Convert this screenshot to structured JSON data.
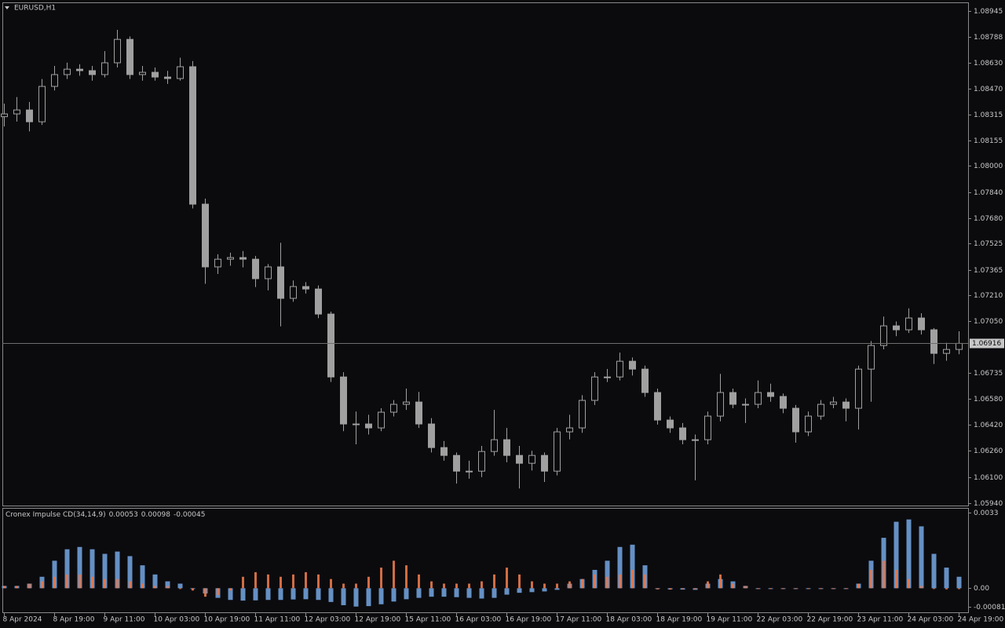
{
  "chart_data": [
    {
      "type": "candlestick",
      "title": "EURUSD,H1",
      "color": "#a0a0a0",
      "current_price": 1.06916,
      "categories": [
        "8 Apr 2024",
        null,
        null,
        null,
        "8 Apr 19:00",
        null,
        null,
        null,
        "9 Apr 11:00",
        null,
        null,
        null,
        "10 Apr 03:00",
        null,
        null,
        null,
        "10 Apr 19:00",
        null,
        null,
        null,
        "11 Apr 11:00",
        null,
        null,
        null,
        "12 Apr 03:00",
        null,
        null,
        null,
        "12 Apr 19:00",
        null,
        null,
        null,
        "15 Apr 11:00",
        null,
        null,
        null,
        "16 Apr 03:00",
        null,
        null,
        null,
        "16 Apr 19:00",
        null,
        null,
        null,
        "17 Apr 11:00",
        null,
        null,
        null,
        "18 Apr 03:00",
        null,
        null,
        null,
        "18 Apr 19:00",
        null,
        null,
        null,
        "19 Apr 11:00",
        null,
        null,
        null,
        "22 Apr 03:00",
        null,
        null,
        null,
        "22 Apr 19:00",
        null,
        null,
        null,
        "23 Apr 11:00",
        null,
        null,
        null,
        "24 Apr 03:00",
        null,
        null,
        null,
        "24 Apr 19:00"
      ],
      "candles": [
        [
          1.083,
          1.0838,
          1.0824,
          1.08317
        ],
        [
          1.08317,
          1.0842,
          1.0827,
          1.08341
        ],
        [
          1.08341,
          1.0839,
          1.0821,
          1.08269
        ],
        [
          1.08269,
          1.0853,
          1.0825,
          1.08485
        ],
        [
          1.08485,
          1.0861,
          1.0846,
          1.08557
        ],
        [
          1.08557,
          1.0863,
          1.0853,
          1.0859
        ],
        [
          1.0859,
          1.0862,
          1.0855,
          1.08581
        ],
        [
          1.08581,
          1.0861,
          1.0852,
          1.08557
        ],
        [
          1.08557,
          1.087,
          1.0854,
          1.08629
        ],
        [
          1.08629,
          1.0883,
          1.086,
          1.08772
        ],
        [
          1.08772,
          1.0879,
          1.0853,
          1.08557
        ],
        [
          1.08557,
          1.0861,
          1.0852,
          1.08571
        ],
        [
          1.08571,
          1.086,
          1.0852,
          1.08542
        ],
        [
          1.08542,
          1.0858,
          1.085,
          1.08533
        ],
        [
          1.08533,
          1.0866,
          1.0852,
          1.08605
        ],
        [
          1.08605,
          1.0864,
          1.0774,
          1.07766
        ],
        [
          1.07766,
          1.078,
          1.0728,
          1.07383
        ],
        [
          1.07383,
          1.0746,
          1.0734,
          1.0743
        ],
        [
          1.0743,
          1.0747,
          1.0739,
          1.0744
        ],
        [
          1.0744,
          1.0748,
          1.0738,
          1.0743
        ],
        [
          1.0743,
          1.0745,
          1.0726,
          1.07311
        ],
        [
          1.07311,
          1.074,
          1.0724,
          1.07383
        ],
        [
          1.07383,
          1.0753,
          1.0702,
          1.07191
        ],
        [
          1.07191,
          1.073,
          1.0717,
          1.07263
        ],
        [
          1.07263,
          1.0729,
          1.0722,
          1.07248
        ],
        [
          1.07248,
          1.0727,
          1.0707,
          1.07095
        ],
        [
          1.07095,
          1.0711,
          1.0668,
          1.06711
        ],
        [
          1.06711,
          1.0674,
          1.0638,
          1.06424
        ],
        [
          1.06424,
          1.065,
          1.063,
          1.06424
        ],
        [
          1.06424,
          1.0648,
          1.0636,
          1.064
        ],
        [
          1.064,
          1.0652,
          1.0638,
          1.06496
        ],
        [
          1.06496,
          1.0657,
          1.0647,
          1.06544
        ],
        [
          1.06544,
          1.0664,
          1.0651,
          1.06558
        ],
        [
          1.06558,
          1.0662,
          1.064,
          1.06424
        ],
        [
          1.06424,
          1.0646,
          1.0625,
          1.0628
        ],
        [
          1.0628,
          1.0632,
          1.062,
          1.06232
        ],
        [
          1.06232,
          1.0625,
          1.0606,
          1.06136
        ],
        [
          1.06136,
          1.062,
          1.0609,
          1.06136
        ],
        [
          1.06136,
          1.0629,
          1.061,
          1.06256
        ],
        [
          1.06256,
          1.0651,
          1.0623,
          1.06328
        ],
        [
          1.06328,
          1.064,
          1.0619,
          1.06232
        ],
        [
          1.06232,
          1.0629,
          1.0603,
          1.06184
        ],
        [
          1.06184,
          1.0626,
          1.0614,
          1.06232
        ],
        [
          1.06232,
          1.0625,
          1.0607,
          1.06136
        ],
        [
          1.06136,
          1.064,
          1.0611,
          1.06376
        ],
        [
          1.06376,
          1.0648,
          1.0633,
          1.064
        ],
        [
          1.064,
          1.066,
          1.0637,
          1.06568
        ],
        [
          1.06568,
          1.0674,
          1.0654,
          1.06711
        ],
        [
          1.06711,
          1.0676,
          1.0668,
          1.06711
        ],
        [
          1.06711,
          1.0686,
          1.0669,
          1.06807
        ],
        [
          1.06807,
          1.0683,
          1.0672,
          1.06759
        ],
        [
          1.06759,
          1.0678,
          1.0659,
          1.06616
        ],
        [
          1.06616,
          1.0664,
          1.0642,
          1.06448
        ],
        [
          1.06448,
          1.0647,
          1.0637,
          1.064
        ],
        [
          1.064,
          1.0643,
          1.063,
          1.06328
        ],
        [
          1.06328,
          1.0636,
          1.0608,
          1.06328
        ],
        [
          1.06328,
          1.065,
          1.063,
          1.06472
        ],
        [
          1.06472,
          1.0673,
          1.0644,
          1.06616
        ],
        [
          1.06616,
          1.0664,
          1.0652,
          1.06544
        ],
        [
          1.06544,
          1.0658,
          1.0643,
          1.06544
        ],
        [
          1.06544,
          1.0669,
          1.0652,
          1.06616
        ],
        [
          1.06616,
          1.0667,
          1.0656,
          1.06592
        ],
        [
          1.06592,
          1.0661,
          1.0649,
          1.0652
        ],
        [
          1.0652,
          1.0654,
          1.0631,
          1.06376
        ],
        [
          1.06376,
          1.065,
          1.0635,
          1.06472
        ],
        [
          1.06472,
          1.0657,
          1.0645,
          1.06544
        ],
        [
          1.06544,
          1.0659,
          1.0652,
          1.06558
        ],
        [
          1.06558,
          1.0658,
          1.0644,
          1.0652
        ],
        [
          1.0652,
          1.0678,
          1.0639,
          1.06759
        ],
        [
          1.06759,
          1.0693,
          1.0656,
          1.06903
        ],
        [
          1.06903,
          1.0708,
          1.0688,
          1.07023
        ],
        [
          1.07023,
          1.0705,
          1.0696,
          1.06999
        ],
        [
          1.06999,
          1.0713,
          1.0698,
          1.07071
        ],
        [
          1.07071,
          1.071,
          1.0697,
          1.06999
        ],
        [
          1.06999,
          1.0701,
          1.0679,
          1.06855
        ],
        [
          1.06855,
          1.0692,
          1.0681,
          1.06879
        ],
        [
          1.06879,
          1.0699,
          1.0685,
          1.06916
        ]
      ],
      "ylim": [
        1.05926,
        1.08998
      ],
      "yticks": [
        1.08945,
        1.08788,
        {
          "value": 1.0863,
          "label": "1.08630"
        },
        {
          "value": 1.0847,
          "label": "1.08470"
        },
        1.08315,
        1.08155,
        {
          "value": 1.08,
          "label": "1.08000"
        },
        {
          "value": 1.0784,
          "label": "1.07840"
        },
        {
          "value": 1.0768,
          "label": "1.07680"
        },
        1.07525,
        1.07365,
        {
          "value": 1.0721,
          "label": "1.07210"
        },
        {
          "value": 1.0705,
          "label": "1.07050"
        },
        1.06735,
        {
          "value": 1.0658,
          "label": "1.06580"
        },
        {
          "value": 1.0642,
          "label": "1.06420"
        },
        {
          "value": 1.0626,
          "label": "1.06260"
        },
        {
          "value": 1.061,
          "label": "1.06100"
        },
        {
          "value": 1.0594,
          "label": "1.05940"
        }
      ]
    },
    {
      "type": "histogram",
      "title": "Cronex Impulse CD(34,14,9)",
      "current_values": [
        0.00053,
        0.00098,
        -0.00045
      ],
      "ylim": [
        -0.00105,
        0.00347
      ],
      "yticks": [
        0.0033,
        {
          "value": 0,
          "label": "0.00"
        },
        -0.00081
      ],
      "series": [
        {
          "color": "#6f9fd8",
          "values": [
            0.0001,
            0.0001,
            0.0002,
            0.0005,
            0.0012,
            0.0017,
            0.0018,
            0.0017,
            0.0015,
            0.0016,
            0.0014,
            0.001,
            0.0006,
            0.0003,
            0.0002,
            0,
            -0.00023,
            -0.00042,
            -0.00051,
            -0.00054,
            -0.00053,
            -0.00051,
            -0.00051,
            -0.00049,
            -0.00048,
            -0.00051,
            -0.0006,
            -0.00074,
            -0.0008,
            -0.00078,
            -0.0007,
            -0.00058,
            -0.00048,
            -0.00042,
            -0.00037,
            -0.00037,
            -0.00039,
            -0.00042,
            -0.00045,
            -0.00042,
            -0.00028,
            -0.0002,
            -0.00017,
            -0.00014,
            -7e-05,
            0.0002,
            0.0004,
            0.0008,
            0.0012,
            0.0018,
            0.0019,
            0.001,
            -3e-05,
            -5e-05,
            -6e-05,
            -7e-05,
            0.0002,
            0.0004,
            0.0003,
            0.0001,
            0,
            0,
            0,
            0,
            0,
            0,
            0,
            0,
            0.0002,
            0.0012,
            0.0022,
            0.0029,
            0.003,
            0.0027,
            0.0015,
            0.0009,
            0.0005
          ]
        },
        {
          "color": "#e8784a",
          "values": [
            0.0001,
            0.0001,
            0.0002,
            0.0003,
            0.0005,
            0.0006,
            0.0006,
            0.0005,
            0.0004,
            0.0004,
            0.0003,
            0.0002,
            0.0001,
            0.0001,
            0,
            -0.0001,
            -0.00037,
            -0.0003,
            -0.0001,
            0.0005,
            0.0007,
            0.0006,
            0.0005,
            0.0006,
            0.0007,
            0.0006,
            0.0004,
            0.0002,
            0.0002,
            0.0005,
            0.0009,
            0.0012,
            0.001,
            0.0006,
            0.0003,
            0.0002,
            0.0002,
            0.0002,
            0.0003,
            0.0006,
            0.0009,
            0.0006,
            0.0003,
            0.0002,
            0.0002,
            0.0003,
            0.0004,
            0.0006,
            0.0005,
            0.0006,
            0.0008,
            0.0006,
            -5e-05,
            -6e-05,
            -4e-05,
            -5e-05,
            0.0003,
            0.0006,
            0.0002,
            0.0001,
            0,
            0,
            0,
            0,
            0,
            0,
            0,
            0,
            0.0002,
            0.0008,
            0.0012,
            0.0008,
            0.0004,
            0.0001,
            -3e-05,
            -5e-05,
            -4e-05
          ]
        }
      ]
    }
  ]
}
